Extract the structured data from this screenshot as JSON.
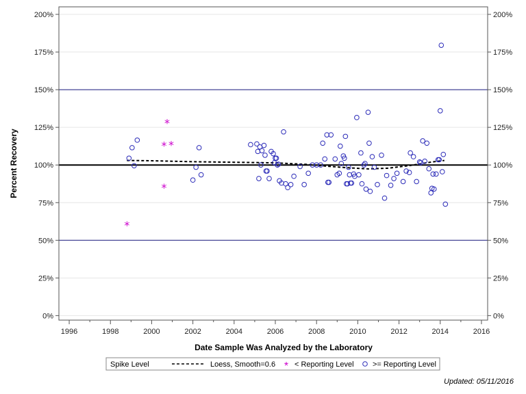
{
  "chart_data": {
    "type": "scatter",
    "xlabel": "Date Sample Was Analyzed by the Laboratory",
    "ylabel": "Percent Recovery",
    "xlim": [
      1995.5,
      2016.3
    ],
    "ylim": [
      -3,
      205
    ],
    "x_ticks": [
      1996,
      1998,
      2000,
      2002,
      2004,
      2006,
      2008,
      2010,
      2012,
      2014,
      2016
    ],
    "y_ticks": [
      0,
      25,
      50,
      75,
      100,
      125,
      150,
      175,
      200
    ],
    "y_tick_labels": [
      "0%",
      "25%",
      "50%",
      "75%",
      "100%",
      "125%",
      "150%",
      "175%",
      "200%"
    ],
    "grid": true,
    "reference_lines": [
      {
        "y": 100,
        "style": "solid-bold"
      },
      {
        "y": 150,
        "style": "solid"
      },
      {
        "y": 50,
        "style": "solid"
      }
    ],
    "legend": {
      "placement": "bottom",
      "title": "Spike Level",
      "entries": [
        {
          "label": "Loess, Smooth=0.6",
          "marker": "dashed-line"
        },
        {
          "label": "< Reporting Level",
          "marker": "asterisk"
        },
        {
          "label": ">= Reporting Level",
          "marker": "circle"
        }
      ]
    },
    "colors": {
      "circle": "#2a2ab8",
      "asterisk": "#cc00cc",
      "ref_line": "#1a1a80",
      "loess": "#000000"
    },
    "series": [
      {
        "name": "Loess, Smooth=0.6",
        "type": "line",
        "x": [
          1998.8,
          2000,
          2002,
          2004,
          2006,
          2007.5,
          2008.5,
          2009.5,
          2010.5,
          2011.5,
          2012.5,
          2013.5,
          2014.2
        ],
        "y": [
          103,
          102.8,
          102.2,
          101.8,
          101.4,
          100.4,
          99.2,
          98.2,
          97.4,
          97.9,
          99.6,
          101.8,
          103
        ]
      },
      {
        "name": "< Reporting Level",
        "type": "scatter",
        "x": [
          1998.8,
          2000.6,
          2000.6,
          2000.75,
          2000.95
        ],
        "y": [
          61,
          114,
          86,
          129,
          114.5
        ]
      },
      {
        "name": ">= Reporting Level",
        "type": "scatter",
        "x": [
          1998.9,
          1999.05,
          1999.15,
          1999.3,
          2002,
          2002.15,
          2002.3,
          2002.4,
          2004.8,
          2005.1,
          2005.15,
          2005.2,
          2005.25,
          2005.3,
          2005.35,
          2005.45,
          2005.5,
          2005.55,
          2005.6,
          2005.7,
          2005.8,
          2005.9,
          2005.95,
          2006.0,
          2006.05,
          2006.1,
          2006.15,
          2006.2,
          2006.3,
          2006.4,
          2006.5,
          2006.6,
          2006.75,
          2006.9,
          2007.2,
          2007.4,
          2007.6,
          2007.8,
          2008.0,
          2008.2,
          2008.3,
          2008.4,
          2008.5,
          2008.55,
          2008.6,
          2008.7,
          2008.9,
          2009.0,
          2009.1,
          2009.15,
          2009.2,
          2009.3,
          2009.35,
          2009.4,
          2009.45,
          2009.5,
          2009.55,
          2009.6,
          2009.65,
          2009.7,
          2009.8,
          2009.85,
          2009.95,
          2010.05,
          2010.15,
          2010.2,
          2010.3,
          2010.35,
          2010.4,
          2010.5,
          2010.55,
          2010.6,
          2010.7,
          2010.8,
          2010.95,
          2011.15,
          2011.3,
          2011.4,
          2011.6,
          2011.75,
          2011.9,
          2012.2,
          2012.35,
          2012.5,
          2012.55,
          2012.7,
          2012.85,
          2013.0,
          2013.05,
          2013.15,
          2013.25,
          2013.35,
          2013.45,
          2013.55,
          2013.6,
          2013.65,
          2013.7,
          2013.8,
          2013.9,
          2013.95,
          2014.0,
          2014.05,
          2014.1,
          2014.15,
          2014.25
        ],
        "y": [
          104.5,
          111.5,
          99.5,
          116.5,
          90,
          98.5,
          111.5,
          93.5,
          113.5,
          114,
          109,
          91,
          112,
          100,
          109.5,
          113,
          106.5,
          96,
          96,
          91,
          109,
          107.5,
          101.5,
          104.5,
          104.5,
          100,
          100.5,
          89.5,
          88,
          122,
          87.5,
          85,
          87,
          92.5,
          99,
          87,
          94.5,
          100,
          100,
          100,
          114.5,
          104,
          120,
          88.5,
          88.5,
          120,
          104,
          93.5,
          94.5,
          112.5,
          101,
          106,
          104.5,
          119,
          87.5,
          87.5,
          98.5,
          93.5,
          88,
          88,
          94,
          92.5,
          131.5,
          93.5,
          108,
          87.5,
          100,
          101,
          84,
          135,
          114.5,
          82.5,
          105.5,
          98.5,
          87,
          106.5,
          78,
          93,
          86.5,
          91,
          94.5,
          89,
          96,
          95,
          108,
          105.5,
          89,
          102,
          101.5,
          116,
          102.5,
          114.5,
          97.5,
          81.5,
          84.5,
          94,
          84,
          94,
          103.5,
          103.5,
          136,
          179.5,
          95.5,
          107,
          74
        ]
      }
    ],
    "footer": "Updated: 05/11/2016"
  }
}
